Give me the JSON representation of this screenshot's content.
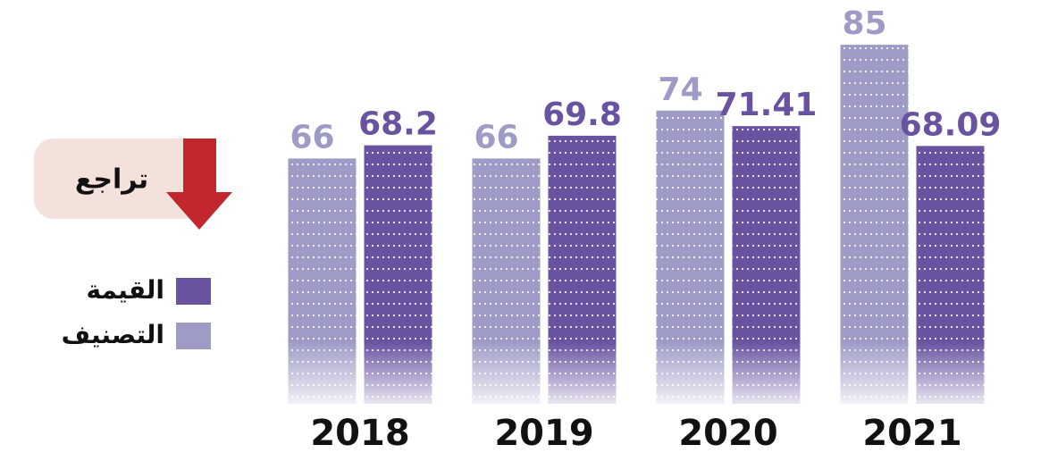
{
  "chart_data": {
    "type": "bar",
    "categories": [
      "2018",
      "2019",
      "2020",
      "2021"
    ],
    "series": [
      {
        "name": "التصنيف",
        "color": "#9e9cc6",
        "values": [
          66,
          66,
          74,
          85
        ]
      },
      {
        "name": "القيمة",
        "color": "#6953a0",
        "values": [
          68.2,
          69.8,
          71.41,
          68.09
        ]
      }
    ],
    "ylim": [
      25,
      88
    ],
    "annotation": "تراجع"
  }
}
